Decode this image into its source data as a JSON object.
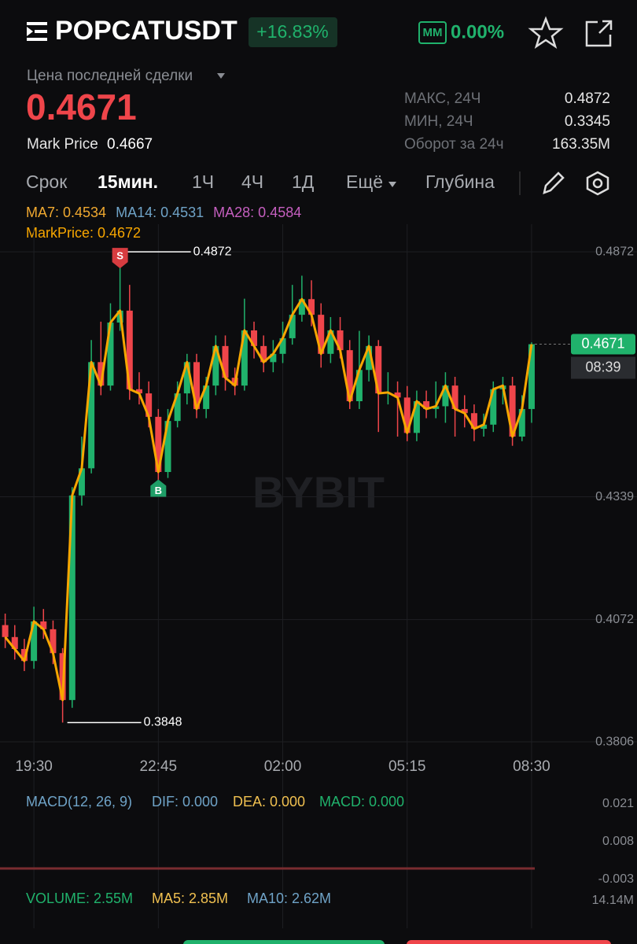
{
  "header": {
    "symbol": "POPCATUSDT",
    "change": "+16.83%",
    "mm_label": "MM",
    "mm_value": "0.00%"
  },
  "price": {
    "last_label": "Цена последней сделки",
    "last": "0.4671",
    "mark_label": "Mark Price",
    "mark": "0.4667"
  },
  "stats": [
    {
      "label": "МАКС, 24Ч",
      "value": "0.4872"
    },
    {
      "label": "МИН, 24Ч",
      "value": "0.3345"
    },
    {
      "label": "Оборот за 24ч",
      "value": "163.35M"
    }
  ],
  "tabs": [
    "Срок",
    "15мин.",
    "1Ч",
    "4Ч",
    "1Д",
    "Ещё",
    "Глубина"
  ],
  "indicators": {
    "ma": [
      {
        "text": "MA7: 0.4534",
        "color": "#f0a930"
      },
      {
        "text": "MA14: 0.4531",
        "color": "#6fa3c7"
      },
      {
        "text": "MA28: 0.4584",
        "color": "#c55fbf"
      }
    ],
    "mark_price": {
      "text": "MarkPrice: 0.4672",
      "color": "#f7a600"
    }
  },
  "chart_data": {
    "type": "candlestick",
    "up_color": "#20b26c",
    "down_color": "#ef454a",
    "candles": [
      [
        0.406,
        0.4085,
        0.401,
        0.4034
      ],
      [
        0.4034,
        0.406,
        0.3985,
        0.4008
      ],
      [
        0.4008,
        0.403,
        0.396,
        0.3982
      ],
      [
        0.3982,
        0.41,
        0.3965,
        0.4068
      ],
      [
        0.4068,
        0.4095,
        0.403,
        0.4051
      ],
      [
        0.4051,
        0.407,
        0.3975,
        0.3999
      ],
      [
        0.3999,
        0.401,
        0.3848,
        0.3897
      ],
      [
        0.3897,
        0.436,
        0.388,
        0.4342
      ],
      [
        0.4342,
        0.447,
        0.432,
        0.4401
      ],
      [
        0.4401,
        0.468,
        0.439,
        0.4632
      ],
      [
        0.4632,
        0.472,
        0.456,
        0.4581
      ],
      [
        0.4581,
        0.476,
        0.457,
        0.4718
      ],
      [
        0.4718,
        0.4872,
        0.47,
        0.4744
      ],
      [
        0.4744,
        0.48,
        0.455,
        0.4573
      ],
      [
        0.4573,
        0.461,
        0.454,
        0.4564
      ],
      [
        0.4564,
        0.459,
        0.449,
        0.4513
      ],
      [
        0.4513,
        0.453,
        0.437,
        0.4393
      ],
      [
        0.4393,
        0.453,
        0.438,
        0.4504
      ],
      [
        0.4504,
        0.459,
        0.449,
        0.4564
      ],
      [
        0.4564,
        0.465,
        0.454,
        0.4632
      ],
      [
        0.4632,
        0.465,
        0.451,
        0.453
      ],
      [
        0.453,
        0.46,
        0.451,
        0.4581
      ],
      [
        0.4581,
        0.469,
        0.456,
        0.4667
      ],
      [
        0.4667,
        0.469,
        0.457,
        0.4598
      ],
      [
        0.4598,
        0.462,
        0.456,
        0.4581
      ],
      [
        0.4581,
        0.477,
        0.457,
        0.4701
      ],
      [
        0.4701,
        0.472,
        0.464,
        0.4667
      ],
      [
        0.4667,
        0.469,
        0.461,
        0.4632
      ],
      [
        0.4632,
        0.468,
        0.461,
        0.465
      ],
      [
        0.465,
        0.472,
        0.463,
        0.4684
      ],
      [
        0.4684,
        0.48,
        0.467,
        0.4735
      ],
      [
        0.4735,
        0.482,
        0.472,
        0.4769
      ],
      [
        0.4769,
        0.481,
        0.471,
        0.4735
      ],
      [
        0.4735,
        0.476,
        0.462,
        0.465
      ],
      [
        0.465,
        0.473,
        0.463,
        0.4701
      ],
      [
        0.4701,
        0.473,
        0.464,
        0.4658
      ],
      [
        0.4658,
        0.468,
        0.453,
        0.4547
      ],
      [
        0.4547,
        0.47,
        0.453,
        0.4615
      ],
      [
        0.4615,
        0.469,
        0.459,
        0.4667
      ],
      [
        0.4667,
        0.468,
        0.448,
        0.4564
      ],
      [
        0.4564,
        0.461,
        0.454,
        0.4566
      ],
      [
        0.4566,
        0.459,
        0.447,
        0.4555
      ],
      [
        0.4555,
        0.458,
        0.446,
        0.4478
      ],
      [
        0.4478,
        0.457,
        0.446,
        0.4547
      ],
      [
        0.4547,
        0.457,
        0.451,
        0.453
      ],
      [
        0.453,
        0.459,
        0.451,
        0.4536
      ],
      [
        0.4536,
        0.461,
        0.45,
        0.4581
      ],
      [
        0.4581,
        0.46,
        0.447,
        0.453
      ],
      [
        0.453,
        0.456,
        0.449,
        0.4521
      ],
      [
        0.4521,
        0.454,
        0.446,
        0.4487
      ],
      [
        0.4487,
        0.452,
        0.447,
        0.4496
      ],
      [
        0.4496,
        0.459,
        0.448,
        0.4573
      ],
      [
        0.4573,
        0.46,
        0.454,
        0.4581
      ],
      [
        0.4581,
        0.46,
        0.445,
        0.447
      ],
      [
        0.447,
        0.456,
        0.446,
        0.453
      ],
      [
        0.453,
        0.4675,
        0.45,
        0.4671
      ]
    ],
    "ylim": [
      0.3777,
      0.4932
    ],
    "yticks": [
      0.4872,
      0.4339,
      0.4072,
      0.3806
    ],
    "x_labels": [
      "19:30",
      "22:45",
      "02:00",
      "05:15",
      "08:30"
    ],
    "last_price": 0.4671,
    "countdown": "08:39",
    "high_marker": {
      "label": "S",
      "value": 0.4872
    },
    "low_marker": {
      "value": 0.3848
    },
    "buy_marker": "B",
    "watermark": "BYBIT"
  },
  "macd": {
    "title": "MACD(12, 26, 9)",
    "dif": "DIF: 0.000",
    "dea": "DEA: 0.000",
    "macd": "MACD: 0.000",
    "ticks": [
      "0.021",
      "0.008",
      "-0.003"
    ]
  },
  "volume": {
    "label": "VOLUME: 2.55M",
    "ma5": "MA5: 2.85M",
    "ma10": "MA10: 2.62M",
    "max": "14.14M"
  }
}
